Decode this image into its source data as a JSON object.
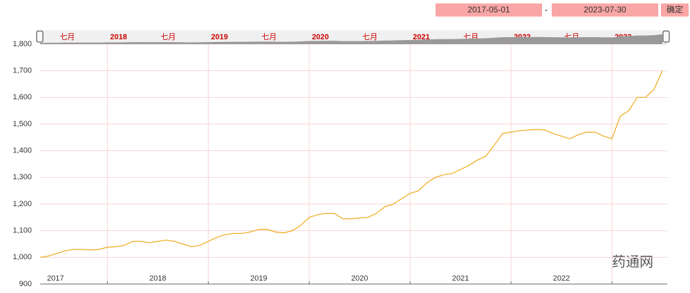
{
  "range_from": "2017-05-01",
  "range_sep": "-",
  "range_to": "2023-07-30",
  "confirm": "确定",
  "watermark": "药通网",
  "chart_data": {
    "type": "line",
    "x": [
      "2017-05",
      "2017-06",
      "2017-07",
      "2017-08",
      "2017-09",
      "2017-10",
      "2017-11",
      "2017-12",
      "2018-01",
      "2018-02",
      "2018-03",
      "2018-04",
      "2018-05",
      "2018-06",
      "2018-07",
      "2018-08",
      "2018-09",
      "2018-10",
      "2018-11",
      "2018-12",
      "2019-01",
      "2019-02",
      "2019-03",
      "2019-04",
      "2019-05",
      "2019-06",
      "2019-07",
      "2019-08",
      "2019-09",
      "2019-10",
      "2019-11",
      "2019-12",
      "2020-01",
      "2020-02",
      "2020-03",
      "2020-04",
      "2020-05",
      "2020-06",
      "2020-07",
      "2020-08",
      "2020-09",
      "2020-10",
      "2020-11",
      "2020-12",
      "2021-01",
      "2021-02",
      "2021-03",
      "2021-04",
      "2021-05",
      "2021-06",
      "2021-07",
      "2021-08",
      "2021-09",
      "2021-10",
      "2021-11",
      "2021-12",
      "2022-01",
      "2022-02",
      "2022-03",
      "2022-04",
      "2022-05",
      "2022-06",
      "2022-07",
      "2022-08",
      "2022-09",
      "2022-10",
      "2022-11",
      "2022-12",
      "2023-01",
      "2023-02",
      "2023-03",
      "2023-04",
      "2023-05",
      "2023-06",
      "2023-07"
    ],
    "series": [
      {
        "color": "#f0a818",
        "values": [
          1000,
          1005,
          1015,
          1025,
          1030,
          1030,
          1028,
          1030,
          1038,
          1040,
          1045,
          1060,
          1060,
          1055,
          1060,
          1065,
          1060,
          1050,
          1040,
          1045,
          1060,
          1075,
          1085,
          1090,
          1090,
          1095,
          1105,
          1105,
          1095,
          1092,
          1100,
          1120,
          1150,
          1160,
          1165,
          1165,
          1145,
          1145,
          1148,
          1150,
          1165,
          1190,
          1200,
          1220,
          1240,
          1250,
          1280,
          1300,
          1310,
          1315,
          1330,
          1345,
          1365,
          1380,
          1420,
          1465,
          1470,
          1475,
          1478,
          1480,
          1478,
          1465,
          1455,
          1445,
          1460,
          1470,
          1470,
          1455,
          1445,
          1530,
          1550,
          1600,
          1600,
          1630,
          1700
        ]
      }
    ],
    "ylim": [
      900,
      1800
    ],
    "yticks": [
      {
        "value": 900,
        "label": "900"
      },
      {
        "value": 1000,
        "label": "1,000"
      },
      {
        "value": 1100,
        "label": "1,100"
      },
      {
        "value": 1200,
        "label": "1,200"
      },
      {
        "value": 1300,
        "label": "1,300"
      },
      {
        "value": 1400,
        "label": "1,400"
      },
      {
        "value": 1500,
        "label": "1,500"
      },
      {
        "value": 1600,
        "label": "1,600"
      },
      {
        "value": 1700,
        "label": "1,700"
      },
      {
        "value": 1800,
        "label": "1,800"
      }
    ],
    "xticks": [
      "2018",
      "2019",
      "2020",
      "2021",
      "2022",
      "2023"
    ],
    "x_year_labels": [
      "2017",
      "2018",
      "2019",
      "2020",
      "2021",
      "2022"
    ],
    "navigator_labels": [
      "七月",
      "2018",
      "七月",
      "2019",
      "七月",
      "2020",
      "七月",
      "2021",
      "七月",
      "2022",
      "七月",
      "2023"
    ],
    "grid": true
  }
}
